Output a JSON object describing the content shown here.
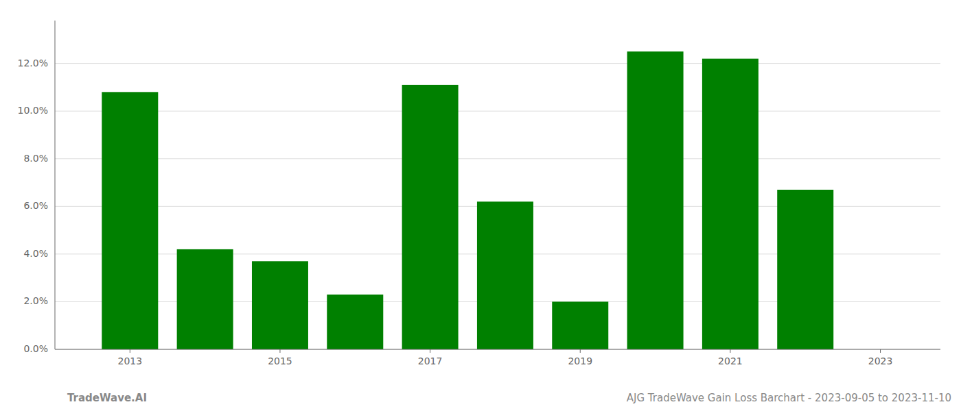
{
  "chart_data": {
    "type": "bar",
    "x": [
      2013,
      2014,
      2015,
      2016,
      2017,
      2018,
      2019,
      2020,
      2021,
      2022
    ],
    "values": [
      0.108,
      0.042,
      0.037,
      0.023,
      0.111,
      0.062,
      0.02,
      0.125,
      0.122,
      0.067
    ],
    "color": "#008000",
    "xlim": [
      2012.0,
      2023.8
    ],
    "xticks": [
      2013,
      2015,
      2017,
      2019,
      2021,
      2023
    ],
    "ylim": [
      0.0,
      0.138
    ],
    "yticks": [
      {
        "value": 0.0,
        "label": "0.0%"
      },
      {
        "value": 0.02,
        "label": "2.0%"
      },
      {
        "value": 0.04,
        "label": "4.0%"
      },
      {
        "value": 0.06,
        "label": "6.0%"
      },
      {
        "value": 0.08,
        "label": "8.0%"
      },
      {
        "value": 0.1,
        "label": "10.0%"
      },
      {
        "value": 0.12,
        "label": "12.0%"
      }
    ],
    "grid": true,
    "annotations": [
      "TradeWave.AI",
      "AJG TradeWave Gain Loss Barchart - 2023-09-05 to 2023-11-10"
    ]
  }
}
